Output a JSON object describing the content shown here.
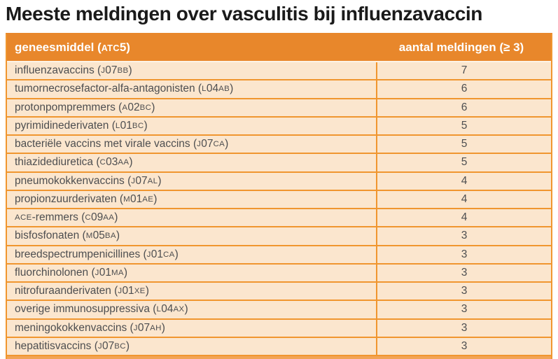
{
  "title": "Meeste meldingen over vasculitis bij influenzavaccin",
  "colors": {
    "header_bg": "#e8872b",
    "row_bg": "#fbe6ce",
    "border": "#f0962f",
    "bottom_bar": "#f2a455",
    "header_text": "#ffffff",
    "body_text": "#4d4e50",
    "title_text": "#1a1a1a"
  },
  "table": {
    "columns": [
      {
        "label": "geneesmiddel (ATC5)"
      },
      {
        "label": "aantal meldingen (≥ 3)"
      }
    ],
    "rows": [
      {
        "drug": "influenzavaccins (J07BB)",
        "count": "7"
      },
      {
        "drug": "tumornecrosefactor-alfa-antagonisten (L04AB)",
        "count": "6"
      },
      {
        "drug": "protonpompremmers (A02BC)",
        "count": "6"
      },
      {
        "drug": "pyrimidinederivaten (L01BC)",
        "count": "5"
      },
      {
        "drug": "bacteriële vaccins met virale vaccins (J07CA)",
        "count": "5"
      },
      {
        "drug": "thiazidediuretica (C03AA)",
        "count": "5"
      },
      {
        "drug": "pneumokokkenvaccins (J07AL)",
        "count": "4"
      },
      {
        "drug": "propionzuurderivaten (M01AE)",
        "count": "4"
      },
      {
        "drug": "ACE-remmers (C09AA)",
        "count": "4"
      },
      {
        "drug": "bisfosfonaten (M05BA)",
        "count": "3"
      },
      {
        "drug": "breedspectrumpenicillines (J01CA)",
        "count": "3"
      },
      {
        "drug": "fluorchinolonen (J01MA)",
        "count": "3"
      },
      {
        "drug": "nitrofuraanderivaten (J01XE)",
        "count": "3"
      },
      {
        "drug": "overige immunosuppressiva (L04AX)",
        "count": "3"
      },
      {
        "drug": "meningokokkenvaccins (J07AH)",
        "count": "3"
      },
      {
        "drug": "hepatitisvaccins (J07BC)",
        "count": "3"
      }
    ]
  }
}
